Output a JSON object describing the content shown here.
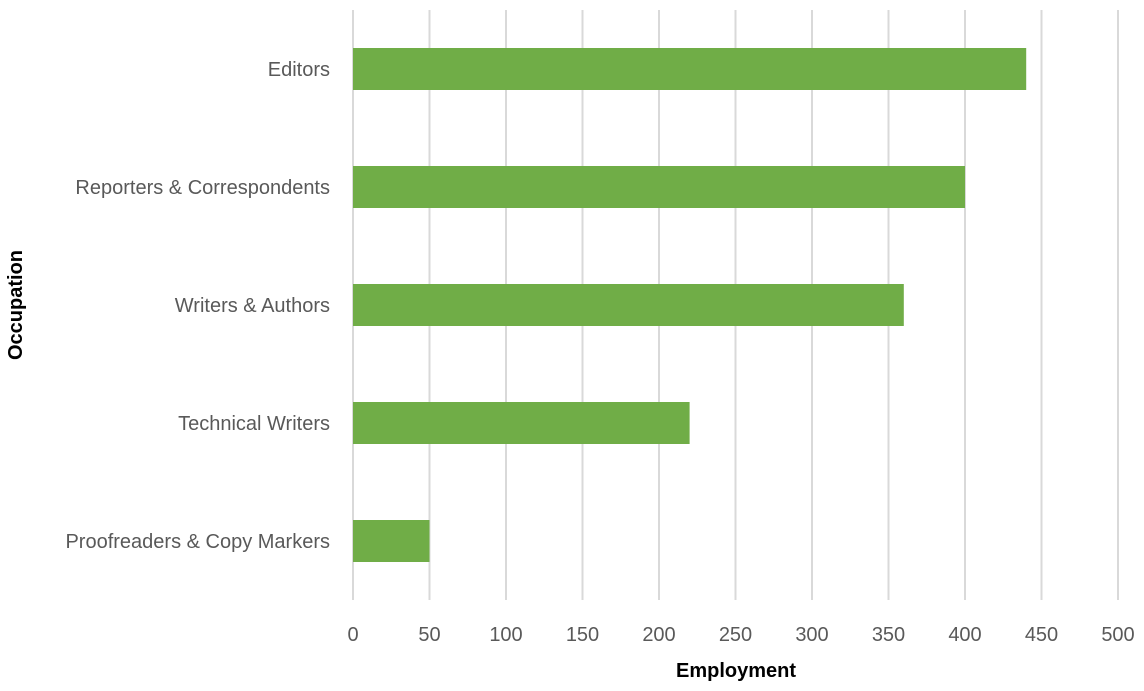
{
  "chart_data": {
    "type": "bar",
    "orientation": "horizontal",
    "categories": [
      "Editors",
      "Reporters & Correspondents",
      "Writers & Authors",
      "Technical Writers",
      "Proofreaders & Copy Markers"
    ],
    "values": [
      440,
      400,
      360,
      220,
      50
    ],
    "xlabel": "Employment",
    "ylabel": "Occupation",
    "xlim": [
      0,
      500
    ],
    "xticks": [
      "0",
      "50",
      "100",
      "150",
      "200",
      "250",
      "300",
      "350",
      "400",
      "450",
      "500"
    ],
    "grid": "vertical",
    "legend": "none",
    "bar_color": "#70ad47"
  }
}
